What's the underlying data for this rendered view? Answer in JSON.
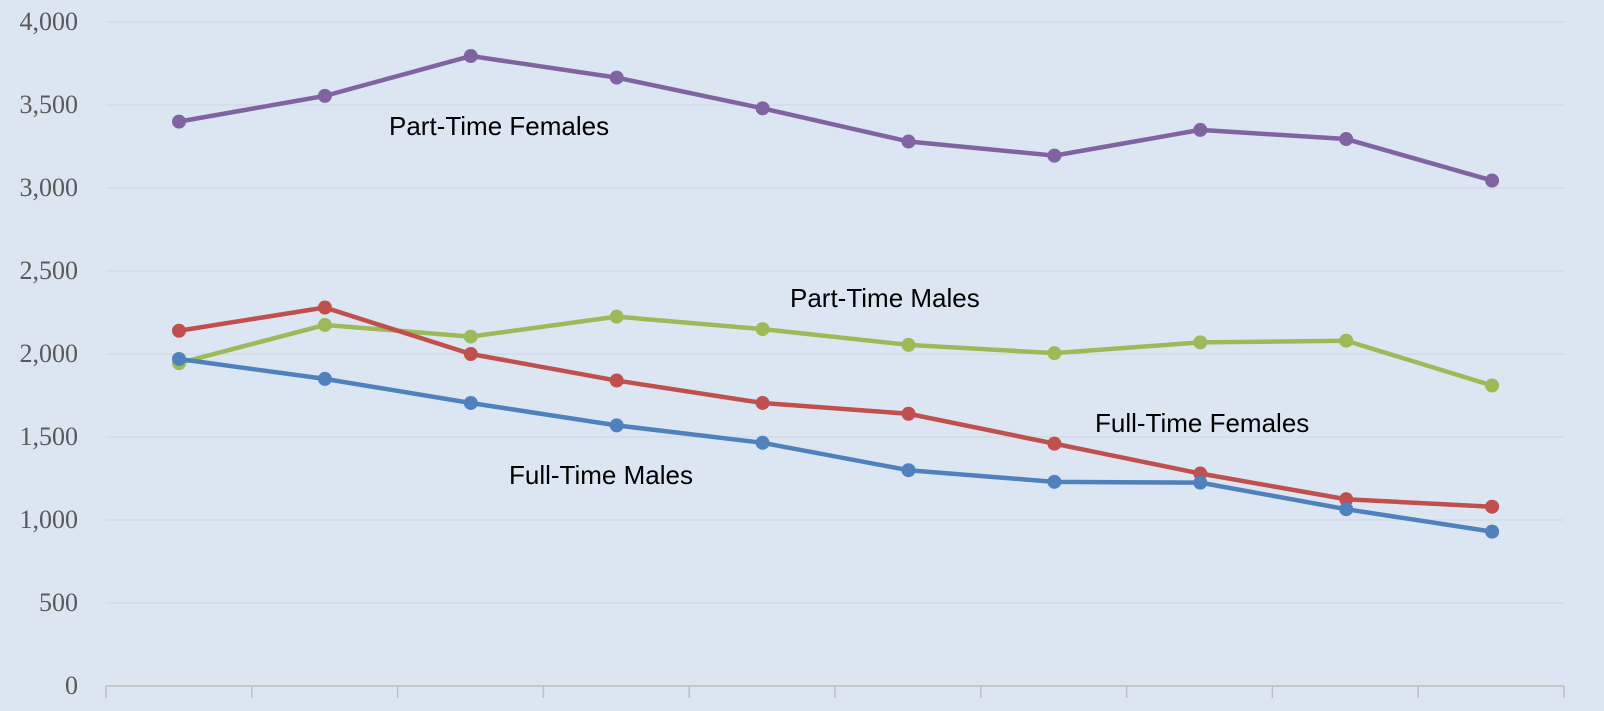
{
  "chart_data": {
    "type": "line",
    "title": "",
    "xlabel": "",
    "ylabel": "",
    "ylim": [
      0,
      4000
    ],
    "yticks": [
      0,
      500,
      1000,
      1500,
      2000,
      2500,
      3000,
      3500,
      4000
    ],
    "ytick_labels": [
      "0",
      "500",
      "1,000",
      "1,500",
      "2,000",
      "2,500",
      "3,000",
      "3,500",
      "4,000"
    ],
    "x": [
      1,
      2,
      3,
      4,
      5,
      6,
      7,
      8,
      9,
      10
    ],
    "grid": true,
    "legend": "none",
    "series": [
      {
        "name": "Part-Time Females",
        "color": "#8064a2",
        "values": [
          3400,
          3555,
          3795,
          3665,
          3480,
          3280,
          3195,
          3350,
          3295,
          3045
        ]
      },
      {
        "name": "Part-Time Males",
        "color": "#9bbb59",
        "values": [
          1945,
          2175,
          2105,
          2225,
          2150,
          2055,
          2005,
          2070,
          2080,
          1810
        ]
      },
      {
        "name": "Full-Time Females",
        "color": "#c0504d",
        "values": [
          2140,
          2280,
          2000,
          1840,
          1705,
          1640,
          1460,
          1280,
          1125,
          1080
        ]
      },
      {
        "name": "Full-Time Males",
        "color": "#4f81bd",
        "values": [
          1970,
          1850,
          1705,
          1570,
          1465,
          1300,
          1230,
          1225,
          1065,
          930
        ]
      }
    ]
  }
}
